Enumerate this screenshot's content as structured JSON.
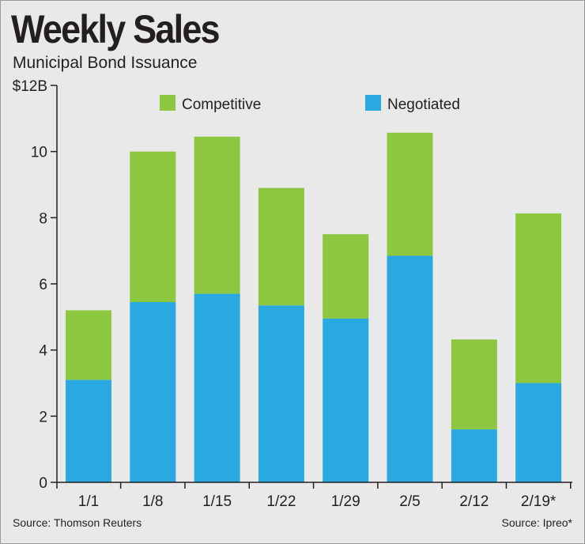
{
  "title": "Weekly Sales",
  "subtitle": "Municipal Bond Issuance",
  "source_left": "Source: Thomson Reuters",
  "source_right": "Source: Ipreo*",
  "colors": {
    "competitive": "#8dc63f",
    "negotiated": "#29a9e0",
    "background": "#e9e9ea",
    "axis": "#231f20"
  },
  "chart_data": {
    "type": "bar",
    "stacked": true,
    "title": "Weekly Sales",
    "subtitle": "Municipal Bond Issuance",
    "categories": [
      "1/1",
      "1/8",
      "1/15",
      "1/22",
      "1/29",
      "2/5",
      "2/12",
      "2/19*"
    ],
    "series": [
      {
        "name": "Negotiated",
        "values": [
          3.1,
          5.45,
          5.7,
          5.35,
          4.95,
          6.85,
          1.6,
          3.0
        ]
      },
      {
        "name": "Competitive",
        "values": [
          2.1,
          4.55,
          4.75,
          3.55,
          2.55,
          3.72,
          2.72,
          5.13
        ]
      }
    ],
    "ylim": [
      0,
      12
    ],
    "yticks": [
      0,
      2,
      4,
      6,
      8,
      10,
      12
    ],
    "ytick_labels": [
      "0",
      "2",
      "4",
      "6",
      "8",
      "10",
      "$12B"
    ],
    "legend_position": "top",
    "grid": false
  }
}
